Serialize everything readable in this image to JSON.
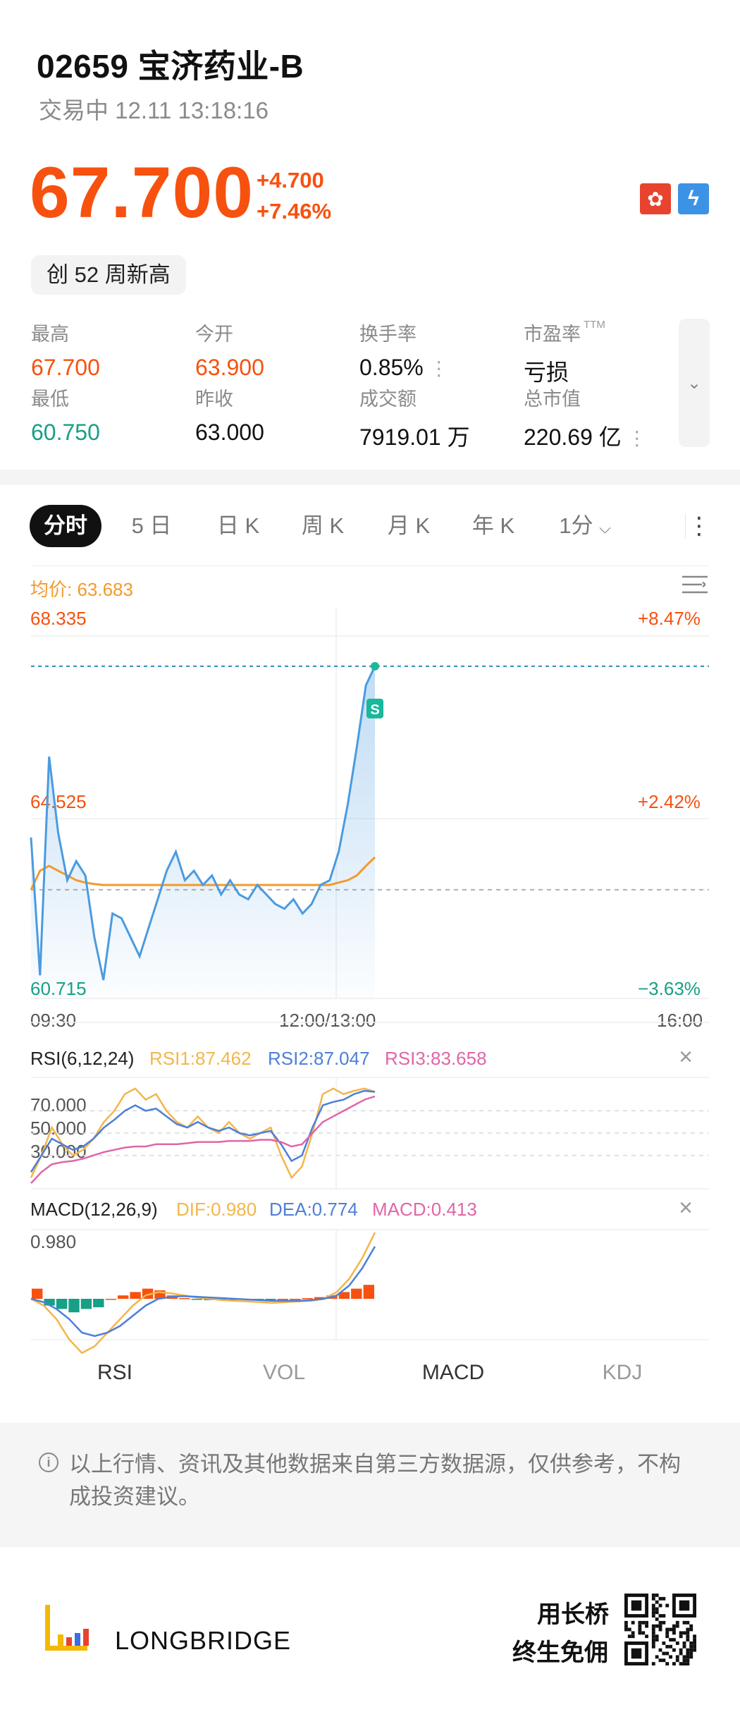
{
  "header": {
    "title": "02659 宝济药业-B",
    "status": "交易中 12.11 13:18:16"
  },
  "quote": {
    "price": "67.700",
    "change_abs": "+4.700",
    "change_pct": "+7.46%",
    "badge": "创 52 周新高"
  },
  "icons": {
    "market_flag": "hk-flag-icon",
    "quick_trade": "lightning-icon"
  },
  "stats": [
    {
      "label": "最高",
      "value": "67.700",
      "tone": "up"
    },
    {
      "label": "今开",
      "value": "63.900",
      "tone": "up"
    },
    {
      "label": "换手率",
      "value": "0.85%",
      "tone": "neutral"
    },
    {
      "label": "市盈率",
      "value": "亏损",
      "tone": "neutral"
    },
    {
      "label": "最低",
      "value": "60.750",
      "tone": "down"
    },
    {
      "label": "昨收",
      "value": "63.000",
      "tone": "neutral"
    },
    {
      "label": "成交额",
      "value": "7919.01 万",
      "tone": "neutral"
    },
    {
      "label": "总市值",
      "value": "220.69 亿",
      "tone": "neutral"
    }
  ],
  "ttm_label": "TTM",
  "tabs": [
    {
      "label": "分时",
      "active": true
    },
    {
      "label": "5 日"
    },
    {
      "label": "日 K"
    },
    {
      "label": "周 K"
    },
    {
      "label": "月 K"
    },
    {
      "label": "年 K"
    },
    {
      "label": "1分"
    }
  ],
  "chart_data": [
    {
      "type": "line",
      "title": "",
      "avg_label": "均价: 63.683",
      "y_labels_left": [
        "68.335",
        "64.525",
        "60.715"
      ],
      "y_labels_right": [
        "+8.47%",
        "+2.42%",
        "−3.63%"
      ],
      "x_labels": [
        "09:30",
        "12:00/13:00",
        "16:00"
      ],
      "ylim": [
        60.715,
        68.335
      ],
      "prev_close": 63.0,
      "sell_marker": "S",
      "series": [
        {
          "name": "price",
          "values": [
            64.1,
            61.2,
            65.8,
            64.2,
            63.2,
            63.6,
            63.3,
            62.0,
            61.1,
            62.5,
            62.4,
            62.0,
            61.6,
            62.2,
            62.8,
            63.4,
            63.8,
            63.2,
            63.4,
            63.1,
            63.3,
            62.9,
            63.2,
            62.9,
            62.8,
            63.1,
            62.9,
            62.7,
            62.6,
            62.8,
            62.5,
            62.7,
            63.1,
            63.2,
            63.8,
            64.8,
            66.0,
            67.3,
            67.7
          ]
        },
        {
          "name": "avg",
          "values": [
            63.0,
            63.4,
            63.5,
            63.4,
            63.3,
            63.2,
            63.15,
            63.12,
            63.1,
            63.1,
            63.1,
            63.1,
            63.1,
            63.1,
            63.1,
            63.1,
            63.1,
            63.1,
            63.1,
            63.1,
            63.1,
            63.1,
            63.1,
            63.1,
            63.1,
            63.1,
            63.1,
            63.1,
            63.1,
            63.1,
            63.1,
            63.1,
            63.1,
            63.1,
            63.15,
            63.2,
            63.3,
            63.5,
            63.683
          ]
        }
      ]
    },
    {
      "type": "line",
      "title": "RSI(6,12,24)",
      "y_labels": [
        "70.000",
        "50.000",
        "30.000"
      ],
      "ylim": [
        0,
        100
      ],
      "series": [
        {
          "name": "RSI1:87.462",
          "values": [
            10,
            30,
            55,
            40,
            30,
            35,
            45,
            60,
            70,
            85,
            90,
            80,
            85,
            70,
            60,
            55,
            65,
            55,
            50,
            60,
            50,
            45,
            50,
            55,
            30,
            10,
            20,
            50,
            85,
            90,
            85,
            88,
            90,
            87
          ]
        },
        {
          "name": "RSI2:87.047",
          "values": [
            15,
            30,
            45,
            40,
            35,
            38,
            45,
            55,
            62,
            70,
            75,
            70,
            72,
            65,
            58,
            55,
            60,
            55,
            52,
            55,
            50,
            48,
            50,
            52,
            40,
            25,
            30,
            55,
            75,
            78,
            80,
            85,
            88,
            87
          ]
        },
        {
          "name": "RSI3:83.658",
          "values": [
            5,
            15,
            22,
            24,
            25,
            27,
            30,
            33,
            35,
            37,
            38,
            38,
            40,
            40,
            40,
            41,
            42,
            42,
            42,
            43,
            43,
            43,
            44,
            44,
            42,
            38,
            40,
            50,
            60,
            65,
            70,
            75,
            80,
            83
          ]
        }
      ]
    },
    {
      "type": "bar",
      "title": "MACD(12,26,9)",
      "y_labels": [
        "0.980"
      ],
      "series": [
        {
          "name": "DIF:0.980",
          "values": [
            0.0,
            -0.1,
            -0.3,
            -0.6,
            -0.8,
            -0.7,
            -0.5,
            -0.3,
            -0.1,
            0.05,
            0.1,
            0.08,
            0.05,
            0.02,
            0.0,
            -0.02,
            -0.03,
            -0.04,
            -0.05,
            -0.06,
            -0.05,
            -0.04,
            -0.03,
            0.0,
            0.1,
            0.3,
            0.6,
            0.98
          ]
        },
        {
          "name": "DEA:0.774",
          "values": [
            0.0,
            -0.05,
            -0.15,
            -0.3,
            -0.5,
            -0.55,
            -0.5,
            -0.4,
            -0.25,
            -0.1,
            0.0,
            0.03,
            0.04,
            0.03,
            0.02,
            0.01,
            0.0,
            -0.01,
            -0.02,
            -0.03,
            -0.03,
            -0.03,
            -0.02,
            0.0,
            0.05,
            0.2,
            0.45,
            0.774
          ]
        },
        {
          "name": "MACD:0.413",
          "values": [
            0.3,
            -0.2,
            -0.3,
            -0.4,
            -0.3,
            -0.25,
            0.0,
            0.1,
            0.2,
            0.3,
            0.25,
            0.1,
            0.02,
            -0.02,
            -0.04,
            -0.04,
            -0.03,
            -0.02,
            -0.02,
            -0.02,
            0.0,
            0.0,
            0.02,
            0.05,
            0.1,
            0.2,
            0.3,
            0.413
          ]
        }
      ]
    }
  ],
  "rsi_title": "RSI(6,12,24)",
  "macd_title": "MACD(12,26,9)",
  "colors": {
    "up": "#f7510f",
    "down": "#16a085",
    "price_line": "#4a9be0",
    "avg_line": "#f29a2e",
    "rsi1": "#f3b64a",
    "rsi2": "#4e7fd8",
    "rsi3": "#e066a8"
  },
  "indicator_tabs": [
    {
      "label": "RSI",
      "active": true
    },
    {
      "label": "VOL"
    },
    {
      "label": "MACD",
      "active": true
    },
    {
      "label": "KDJ"
    }
  ],
  "disclaimer": "以上行情、资讯及其他数据来自第三方数据源，仅供参考，不构成投资建议。",
  "footer": {
    "brand": "LONGBRIDGE",
    "slogan1": "用长桥",
    "slogan2": "终生免佣"
  }
}
